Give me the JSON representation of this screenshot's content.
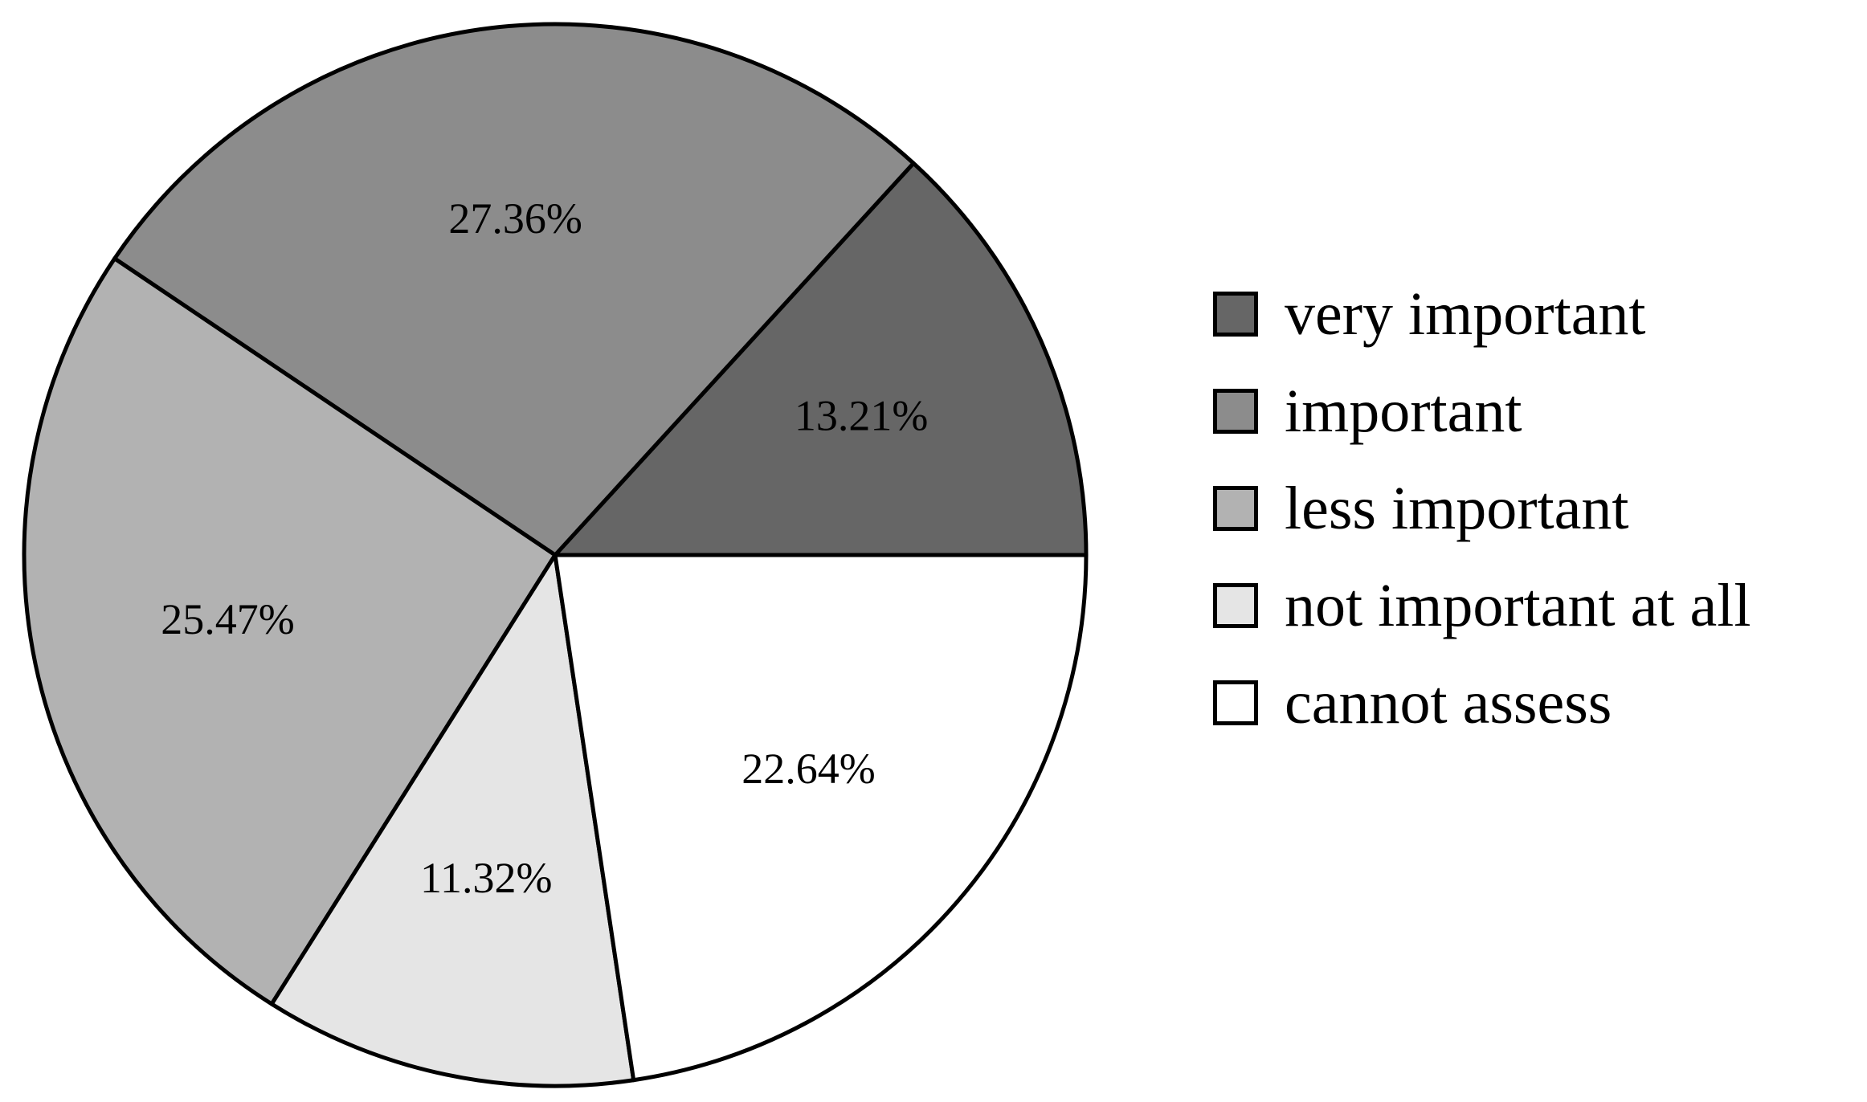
{
  "chart_data": {
    "type": "pie",
    "title": "",
    "slices": [
      {
        "label": "very important",
        "value": 13.21,
        "display": "13.21%",
        "color": "#666666"
      },
      {
        "label": "important",
        "value": 27.36,
        "display": "27.36%",
        "color": "#8c8c8c"
      },
      {
        "label": "less important",
        "value": 25.47,
        "display": "25.47%",
        "color": "#b2b2b2"
      },
      {
        "label": "not important at all",
        "value": 11.32,
        "display": "11.32%",
        "color": "#e5e5e5"
      },
      {
        "label": "cannot assess",
        "value": 22.64,
        "display": "22.64%",
        "color": "#ffffff"
      }
    ],
    "start_angle": "3 o'clock",
    "direction": "counter-clockwise",
    "legend_position": "right"
  }
}
